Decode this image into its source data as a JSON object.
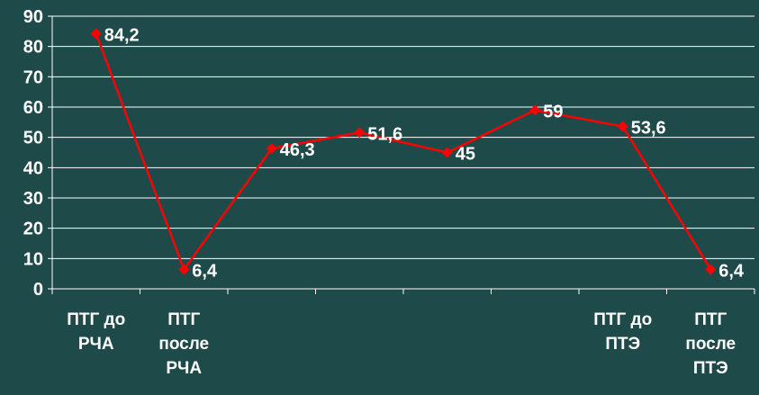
{
  "colors": {
    "background": "#1f4a4a",
    "line": "#ff0000",
    "marker": "#ff0000",
    "text": "#ffffff",
    "gridline": "#ffffff",
    "axis": "#ffffff"
  },
  "chart_data": {
    "type": "line",
    "title": "",
    "xlabel": "",
    "ylabel": "",
    "ylim": [
      0,
      90
    ],
    "ytick_step": 10,
    "yticks": [
      "0",
      "10",
      "20",
      "30",
      "40",
      "50",
      "60",
      "70",
      "80",
      "90"
    ],
    "grid": true,
    "legend": "none",
    "marker": "diamond",
    "categories": [
      [
        "ПТГ до",
        "РЧА"
      ],
      [
        "ПТГ",
        "после",
        "РЧА"
      ],
      [],
      [],
      [],
      [],
      [
        "ПТГ до",
        "ПТЭ"
      ],
      [
        "ПТГ",
        "после",
        "ПТЭ"
      ]
    ],
    "series": [
      {
        "values": [
          84.2,
          6.4,
          46.3,
          51.6,
          45,
          59,
          53.6,
          6.4
        ],
        "data_labels": [
          "84,2",
          "6,4",
          "46,3",
          "51,6",
          "45",
          "59",
          "53,6",
          "6,4"
        ]
      }
    ]
  }
}
